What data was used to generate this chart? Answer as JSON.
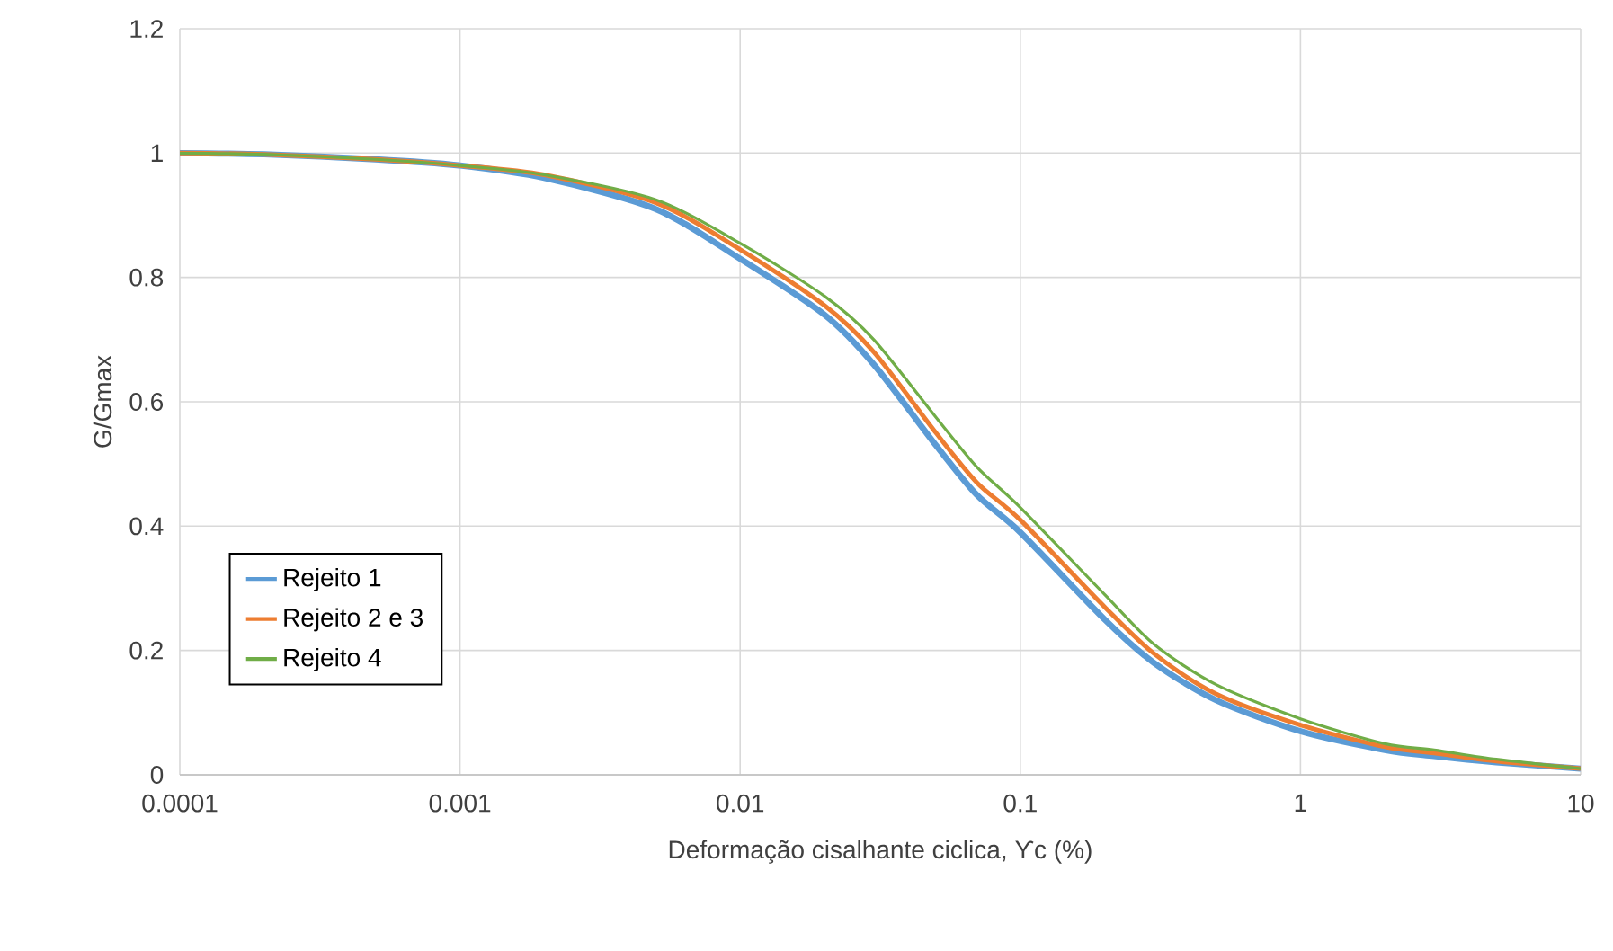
{
  "chart_data": {
    "type": "line",
    "xlabel": "Deformação cisalhante ciclica, ϒc (%)",
    "ylabel": "G/Gmax",
    "log": "x",
    "x": [
      0.0001,
      0.0002,
      0.0005,
      0.001,
      0.002,
      0.005,
      0.01,
      0.02,
      0.03,
      0.05,
      0.07,
      0.1,
      0.2,
      0.3,
      0.5,
      1,
      2,
      3,
      5,
      10
    ],
    "series": [
      {
        "name": "Rejeito 1",
        "color": "#5b9bd5",
        "values": [
          1.0,
          0.998,
          0.99,
          0.98,
          0.96,
          0.91,
          0.83,
          0.74,
          0.66,
          0.53,
          0.45,
          0.39,
          0.25,
          0.18,
          0.12,
          0.07,
          0.04,
          0.03,
          0.02,
          0.01
        ]
      },
      {
        "name": "Rejeito 2 e 3",
        "color": "#ed7d31",
        "values": [
          1.0,
          0.998,
          0.99,
          0.98,
          0.965,
          0.92,
          0.845,
          0.755,
          0.68,
          0.55,
          0.47,
          0.41,
          0.27,
          0.195,
          0.13,
          0.08,
          0.045,
          0.035,
          0.022,
          0.01
        ]
      },
      {
        "name": "Rejeito 4",
        "color": "#70ad47",
        "values": [
          1.0,
          0.998,
          0.99,
          0.98,
          0.965,
          0.925,
          0.855,
          0.77,
          0.7,
          0.575,
          0.495,
          0.43,
          0.29,
          0.21,
          0.145,
          0.09,
          0.05,
          0.04,
          0.025,
          0.01
        ]
      }
    ],
    "xlim": [
      0.0001,
      10
    ],
    "ylim": [
      0,
      1.2
    ],
    "xticks": [
      {
        "value": 0.0001,
        "label": "0.0001"
      },
      {
        "value": 0.001,
        "label": "0.001"
      },
      {
        "value": 0.01,
        "label": "0.01"
      },
      {
        "value": 0.1,
        "label": "0.1"
      },
      {
        "value": 1,
        "label": "1"
      },
      {
        "value": 10,
        "label": "10"
      }
    ],
    "yticks": [
      0,
      0.2,
      0.4,
      0.6,
      0.8,
      1,
      1.2
    ],
    "grid": true,
    "legend": "left",
    "marker": "none",
    "line_style": "solid"
  }
}
